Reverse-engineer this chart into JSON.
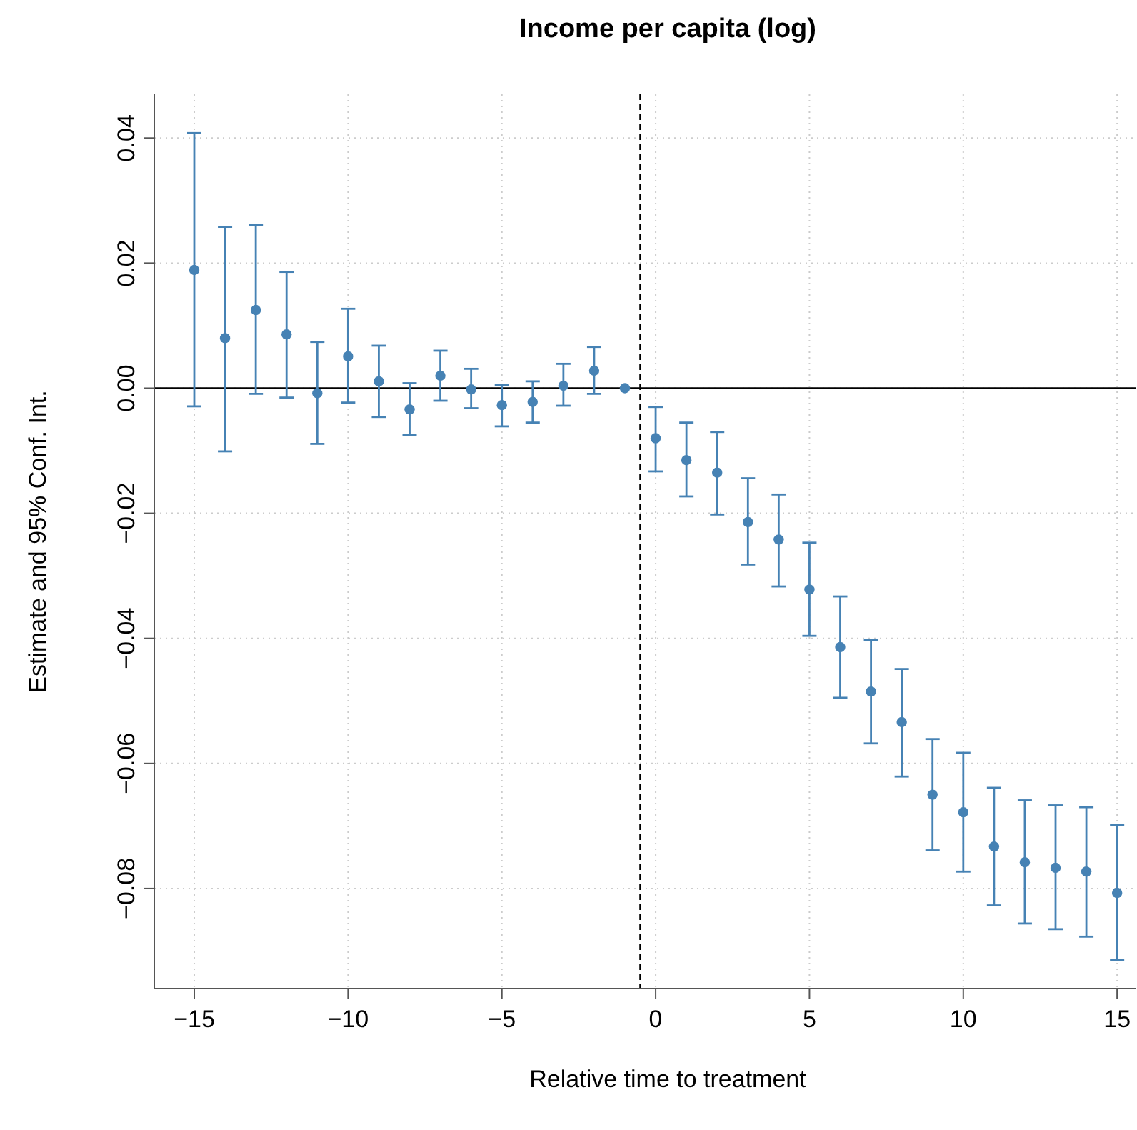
{
  "chart_data": {
    "type": "scatter",
    "title": "Income per capita (log)",
    "xlabel": "Relative time to treatment",
    "ylabel": "Estimate and 95% Conf. Int.",
    "x": [
      -15,
      -14,
      -13,
      -12,
      -11,
      -10,
      -9,
      -8,
      -7,
      -6,
      -5,
      -4,
      -3,
      -2,
      -1,
      0,
      1,
      2,
      3,
      4,
      5,
      6,
      7,
      8,
      9,
      10,
      11,
      12,
      13,
      14,
      15
    ],
    "series": [
      {
        "color": "#4682b4",
        "values": [
          0.0189,
          0.008,
          0.0125,
          0.0086,
          -0.0008,
          0.0051,
          0.0011,
          -0.0034,
          0.002,
          -0.0002,
          -0.0027,
          -0.0022,
          0.0004,
          0.0028,
          0,
          -0.008,
          -0.0115,
          -0.0135,
          -0.0214,
          -0.0242,
          -0.0322,
          -0.0414,
          -0.0485,
          -0.0534,
          -0.065,
          -0.0678,
          -0.0733,
          -0.0758,
          -0.0767,
          -0.0773,
          -0.0807
        ],
        "errors": [
          [
            -0.0029,
            0.0408
          ],
          [
            -0.0101,
            0.0258
          ],
          [
            -0.0009,
            0.0261
          ],
          [
            -0.0015,
            0.0186
          ],
          [
            -0.0089,
            0.0074
          ],
          [
            -0.0023,
            0.0127
          ],
          [
            -0.0046,
            0.0068
          ],
          [
            -0.0075,
            0.0008
          ],
          [
            -0.002,
            0.006
          ],
          [
            -0.0032,
            0.0031
          ],
          [
            -0.0061,
            0.0005
          ],
          [
            -0.0055,
            0.0011
          ],
          [
            -0.0028,
            0.0039
          ],
          [
            -0.0009,
            0.0066
          ],
          null,
          [
            -0.0133,
            -0.003
          ],
          [
            -0.0173,
            -0.0055
          ],
          [
            -0.0202,
            -0.007
          ],
          [
            -0.0282,
            -0.0144
          ],
          [
            -0.0317,
            -0.017
          ],
          [
            -0.0396,
            -0.0247
          ],
          [
            -0.0495,
            -0.0333
          ],
          [
            -0.0568,
            -0.0403
          ],
          [
            -0.0621,
            -0.0449
          ],
          [
            -0.0739,
            -0.0561
          ],
          [
            -0.0773,
            -0.0583
          ],
          [
            -0.0827,
            -0.0639
          ],
          [
            -0.0856,
            -0.0659
          ],
          [
            -0.0865,
            -0.0667
          ],
          [
            -0.0877,
            -0.067
          ],
          [
            -0.0914,
            -0.0698
          ]
        ]
      }
    ],
    "xlim": [
      -16.3,
      15.6
    ],
    "ylim": [
      -0.096,
      0.047
    ],
    "xticks": [
      {
        "value": -15,
        "label": "−15"
      },
      {
        "value": -10,
        "label": "−10"
      },
      {
        "value": -5,
        "label": "−5"
      },
      0,
      5,
      10,
      15
    ],
    "yticks": [
      {
        "value": -0.08,
        "label": "−0.08"
      },
      {
        "value": -0.06,
        "label": "−0.06"
      },
      {
        "value": -0.04,
        "label": "−0.04"
      },
      {
        "value": -0.02,
        "label": "−0.02"
      },
      {
        "value": 0,
        "label": "0.00"
      },
      {
        "value": 0.02,
        "label": "0.02"
      },
      {
        "value": 0.04,
        "label": "0.04"
      }
    ],
    "grid": true,
    "marker": "circle",
    "ref_lines": [
      {
        "axis": "y",
        "value": 0,
        "color": "#000000",
        "line_style": "solid"
      },
      {
        "axis": "x",
        "value": -0.5,
        "color": "#000000",
        "line_style": "dashed"
      }
    ]
  }
}
